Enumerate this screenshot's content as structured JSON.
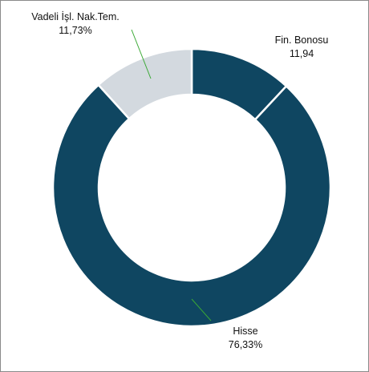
{
  "chart_data": {
    "type": "pie",
    "donut": true,
    "title": "",
    "legend": "none",
    "slices": [
      {
        "label": "Fin. Bonosu",
        "value": 11.94,
        "value_text": "11,94",
        "color": "#0f4661"
      },
      {
        "label": "Hisse",
        "value": 76.33,
        "value_text": "76,33%",
        "color": "#0f4661"
      },
      {
        "label": "Vadeli İşl. Nak.Tem.",
        "value": 11.73,
        "value_text": "11,73%",
        "color": "#d3d9df"
      }
    ],
    "leader_line_color": "#3aa935",
    "slice_separator_color": "#ffffff"
  }
}
